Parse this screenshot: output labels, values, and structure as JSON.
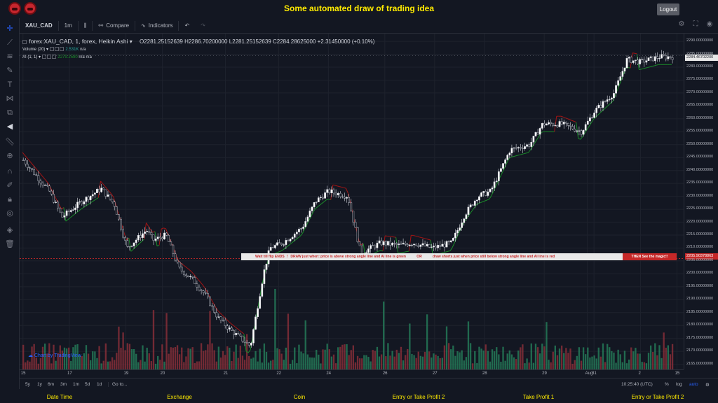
{
  "app": {
    "title": "Some automated draw of trading idea",
    "logout_label": "Logout"
  },
  "toolbar": {
    "symbol": "XAU_CAD",
    "interval": "1m",
    "compare_label": "Compare",
    "indicators_label": "Indicators"
  },
  "legend": {
    "symbol_line": "forex:XAU_CAD, 1, forex, Heikin Ashi",
    "open": "O2281.25152639",
    "high": "H2286.70200000",
    "low": "L2281.25152639",
    "close": "C2284.28625000",
    "change": "+2.31450000 (+0.10%)",
    "volume_label": "Volume (20)",
    "volume_value": "2.531K",
    "volume_na": "n/a",
    "ai_label": "AI (1, 1)",
    "ai_value": "2279.2580",
    "ai_na1": "n/a",
    "ai_na2": "n/a"
  },
  "banner": {
    "text_1": "Wait till flip ENDS",
    "text_2": "DRAW just when:  price is above strong angle line and AI line is green",
    "text_or": "OR",
    "text_3": "draw shorts just when price still below strong angle line and AI line is red",
    "text_red": "THEN See the magic!!"
  },
  "price_axis": {
    "ticks": [
      "2290.00000000",
      "2285.00000000",
      "2280.00000000",
      "2275.00000000",
      "2270.00000000",
      "2265.00000000",
      "2260.00000000",
      "2255.00000000",
      "2250.00000000",
      "2245.00000000",
      "2240.00000000",
      "2235.00000000",
      "2230.00000000",
      "2225.00000000",
      "2220.00000000",
      "2215.00000000",
      "2210.00000000",
      "2205.00000000",
      "2200.00000000",
      "2195.00000000",
      "2190.00000000",
      "2185.00000000",
      "2180.00000000",
      "2175.00000000",
      "2170.00000000",
      "2165.00000000"
    ],
    "current_price_label": "2284.46702200",
    "line_price_label": "2205.90378863"
  },
  "time_axis": {
    "ticks": [
      "15",
      "17",
      "19",
      "20",
      "21",
      "22",
      "24",
      "26",
      "27",
      "28",
      "29",
      "31",
      "Aug",
      "2",
      "15"
    ]
  },
  "bottom_bar": {
    "ranges": [
      "5y",
      "1y",
      "6m",
      "3m",
      "1m",
      "5d",
      "1d"
    ],
    "goto_label": "Go to...",
    "clock": "10:25:40 (UTC)",
    "pct": "%",
    "log": "log",
    "auto": "auto"
  },
  "watermark": "Chart by TradingView",
  "footer": {
    "items": [
      "Date Time",
      "Exchange",
      "Coin",
      "Entry or Take Profit 2",
      "Take Profit 1",
      "Entry or Take Profit 2"
    ]
  },
  "colors": {
    "title": "#ffeb00",
    "up": "#ffffff",
    "down": "#131722",
    "ai_green": "#1b8c2a",
    "ai_red": "#a31515",
    "vol_up": "#26805b",
    "vol_down": "#8c2f3a",
    "line": "#c62828"
  },
  "chart_data": {
    "type": "candlestick",
    "ylim": [
      2163,
      2293
    ],
    "x_labels": [
      "15",
      "17",
      "19",
      "20",
      "21",
      "22",
      "24",
      "26",
      "27",
      "28",
      "29",
      "31",
      "Aug",
      "2",
      "15"
    ],
    "price_path": [
      [
        0.0,
        2244
      ],
      [
        0.04,
        2232
      ],
      [
        0.06,
        2222
      ],
      [
        0.09,
        2228
      ],
      [
        0.12,
        2233
      ],
      [
        0.14,
        2227
      ],
      [
        0.16,
        2210
      ],
      [
        0.19,
        2217
      ],
      [
        0.2,
        2213
      ],
      [
        0.22,
        2215
      ],
      [
        0.24,
        2202
      ],
      [
        0.26,
        2198
      ],
      [
        0.28,
        2192
      ],
      [
        0.3,
        2183
      ],
      [
        0.32,
        2178
      ],
      [
        0.35,
        2172
      ],
      [
        0.36,
        2186
      ],
      [
        0.37,
        2200
      ],
      [
        0.38,
        2210
      ],
      [
        0.4,
        2212
      ],
      [
        0.43,
        2218
      ],
      [
        0.45,
        2228
      ],
      [
        0.47,
        2232
      ],
      [
        0.5,
        2230
      ],
      [
        0.52,
        2208
      ],
      [
        0.55,
        2212
      ],
      [
        0.58,
        2211
      ],
      [
        0.6,
        2212
      ],
      [
        0.63,
        2210
      ],
      [
        0.66,
        2212
      ],
      [
        0.68,
        2223
      ],
      [
        0.7,
        2230
      ],
      [
        0.72,
        2232
      ],
      [
        0.75,
        2248
      ],
      [
        0.78,
        2250
      ],
      [
        0.8,
        2258
      ],
      [
        0.83,
        2258
      ],
      [
        0.86,
        2255
      ],
      [
        0.88,
        2263
      ],
      [
        0.91,
        2270
      ],
      [
        0.93,
        2283
      ],
      [
        0.95,
        2282
      ],
      [
        0.98,
        2284
      ]
    ],
    "current_price": 2284.467022,
    "horizontal_line": 2205.90378863
  }
}
